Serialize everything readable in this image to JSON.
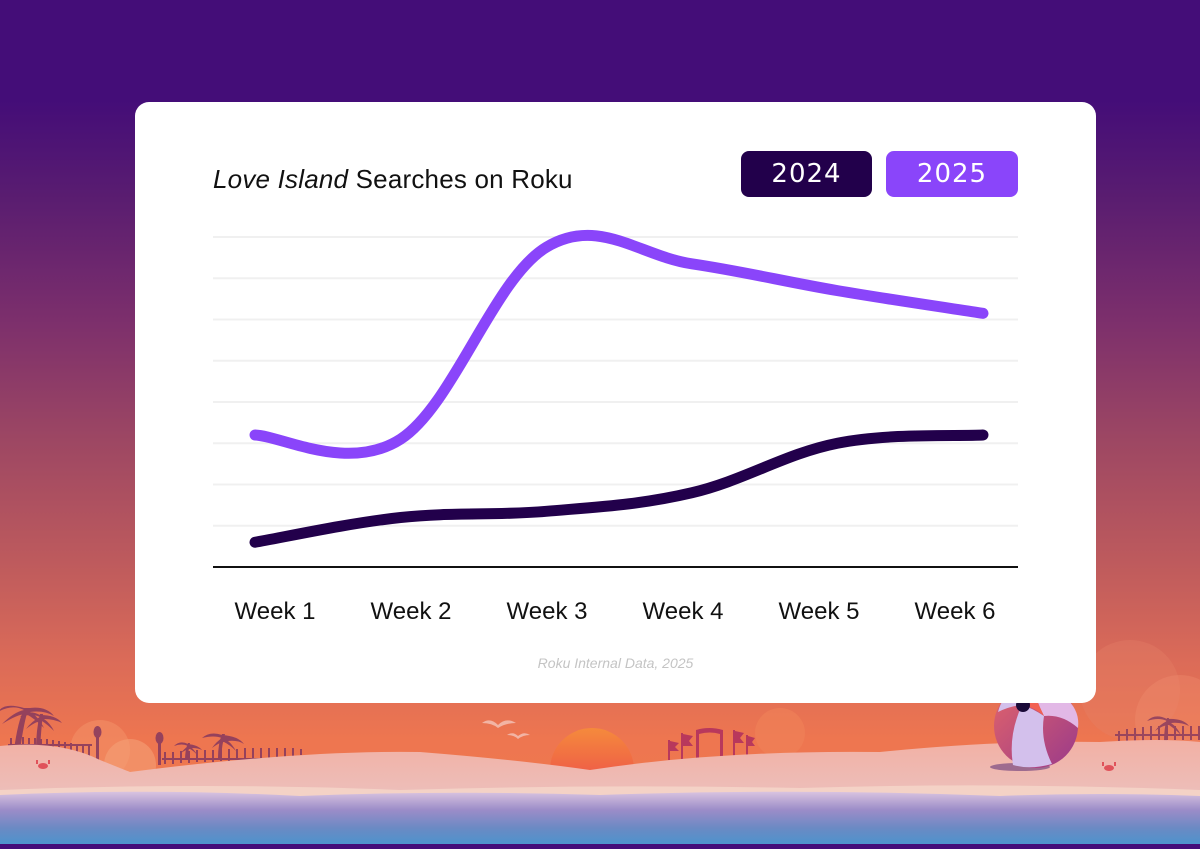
{
  "background": {
    "top_color": "#440d78",
    "bottom_color": "#f07a4c",
    "scene": "beach-sunset"
  },
  "card": {
    "title_italic": "Love Island",
    "title_rest": " Searches on Roku",
    "legend": [
      {
        "label": "2024",
        "color": "#22004b"
      },
      {
        "label": "2025",
        "color": "#8a45fa"
      }
    ],
    "source": "Roku Internal Data, 2025"
  },
  "chart_data": {
    "type": "line",
    "title": "Love Island Searches on Roku",
    "categories": [
      "Week 1",
      "Week 2",
      "Week 3",
      "Week 4",
      "Week 5",
      "Week 6"
    ],
    "series": [
      {
        "name": "2024",
        "color": "#22004b",
        "values": [
          0.6,
          1.2,
          1.35,
          1.8,
          3.0,
          3.2
        ]
      },
      {
        "name": "2025",
        "color": "#8a45fa",
        "values": [
          3.2,
          3.1,
          7.75,
          7.35,
          6.7,
          6.15
        ]
      }
    ],
    "xlabel": "",
    "ylabel": "",
    "ylim": [
      0,
      8
    ],
    "y_ticks_labeled": false,
    "grid": true,
    "gridline_count": 8,
    "legend_position": "top-right",
    "source": "Roku Internal Data, 2025"
  }
}
